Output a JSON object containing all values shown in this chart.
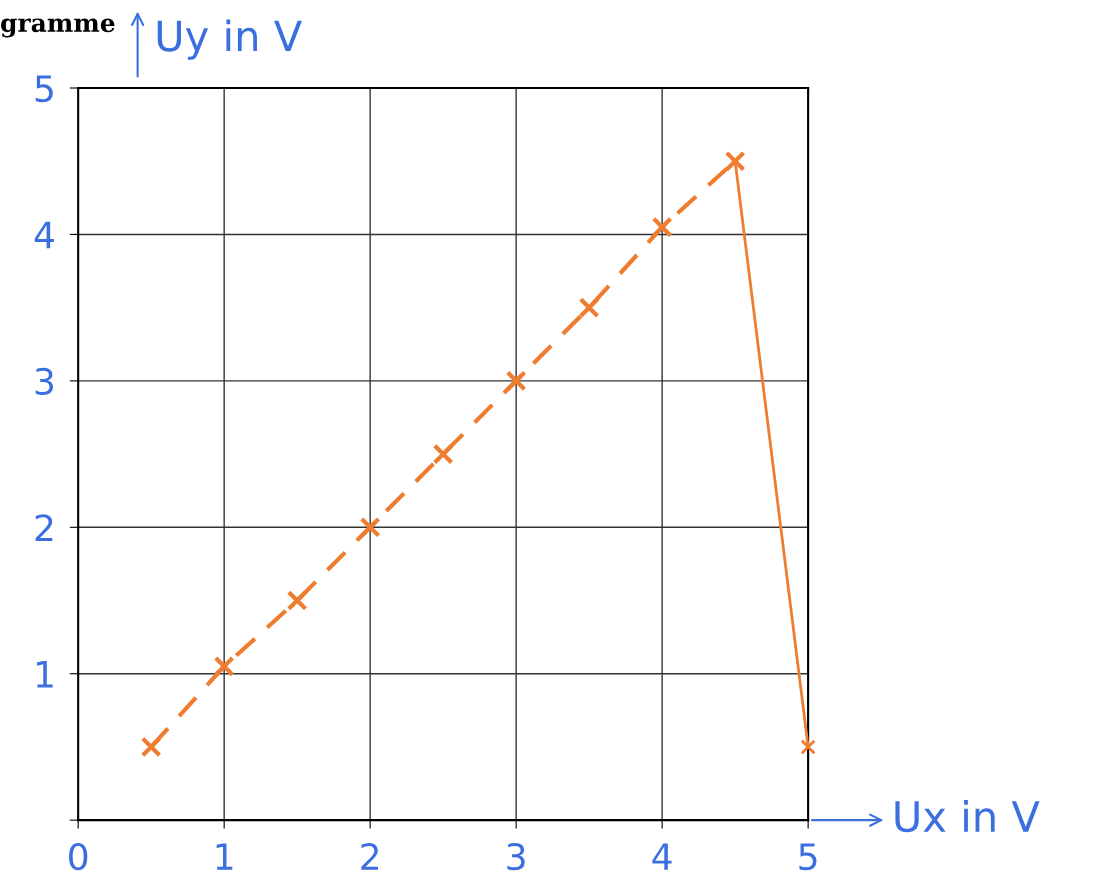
{
  "chart_data": {
    "type": "line",
    "title": "gramme",
    "xlabel": "Ux in V",
    "ylabel": "Uy in V",
    "xlim": [
      0,
      5
    ],
    "ylim": [
      0,
      5
    ],
    "xticks": [
      0,
      1,
      2,
      3,
      4,
      5
    ],
    "yticks": [
      {
        "value": 0,
        "label": null
      },
      1,
      2,
      3,
      4,
      5
    ],
    "grid": true,
    "marker": "cross",
    "series": [
      {
        "color": "#f07c30",
        "line_style": "dashed",
        "x": [
          0.5,
          1,
          1.5,
          2,
          2.5,
          3,
          3.5,
          4,
          4.5
        ],
        "values": [
          0.5,
          1.05,
          1.5,
          2.0,
          2.5,
          3.0,
          3.5,
          4.05,
          4.5
        ]
      },
      {
        "color": "#f07c30",
        "line_style": "solid",
        "x": [
          4.5,
          5
        ],
        "values": [
          4.5,
          0.5
        ]
      }
    ]
  }
}
